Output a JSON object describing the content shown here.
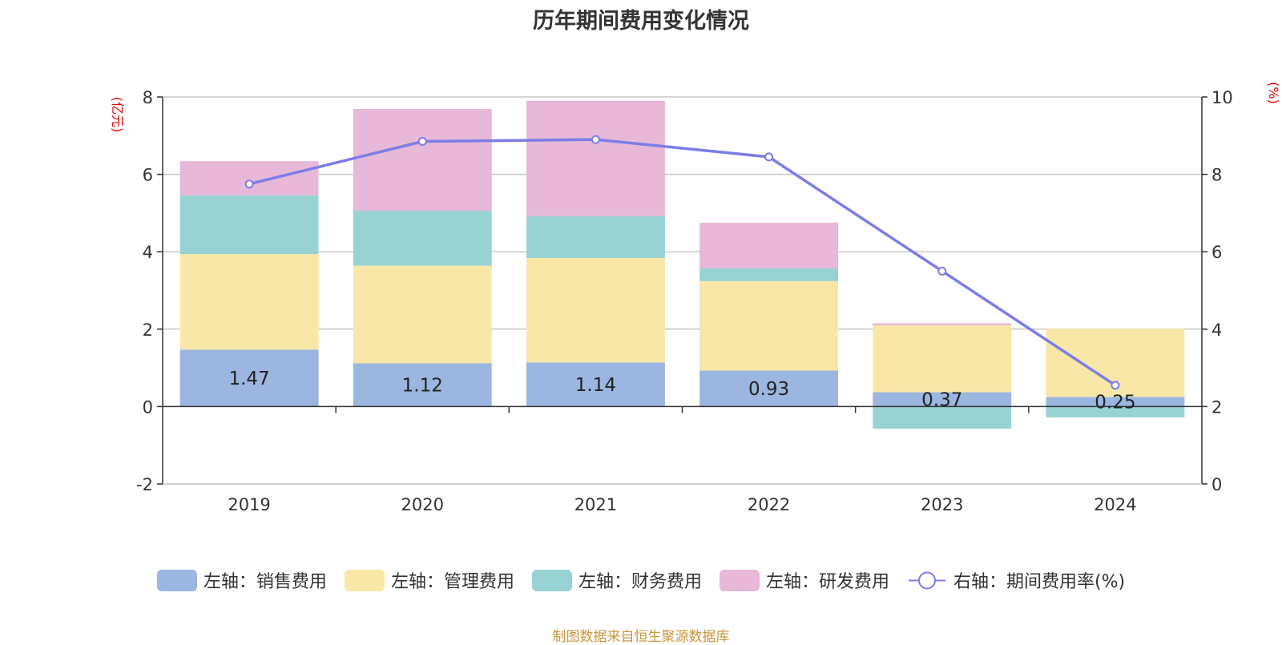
{
  "chart_data": {
    "type": "bar",
    "title": "历年期间费用变化情况",
    "categories": [
      "2019",
      "2020",
      "2021",
      "2022",
      "2023",
      "2024"
    ],
    "stacked": true,
    "series": [
      {
        "name": "左轴：销售费用",
        "axis": "left",
        "color": "#9bb6e0",
        "values": [
          1.47,
          1.12,
          1.14,
          0.93,
          0.37,
          0.25
        ]
      },
      {
        "name": "左轴：管理费用",
        "axis": "left",
        "color": "#f8e7a7",
        "values": [
          2.47,
          2.52,
          2.7,
          2.31,
          1.73,
          1.76
        ]
      },
      {
        "name": "左轴：财务费用",
        "axis": "left",
        "color": "#98d3d4",
        "values": [
          1.52,
          1.42,
          1.08,
          0.33,
          -0.57,
          -0.28
        ]
      },
      {
        "name": "左轴：研发费用",
        "axis": "left",
        "color": "#e8b8d8",
        "values": [
          0.88,
          2.63,
          2.98,
          1.18,
          0.05,
          0.0
        ]
      }
    ],
    "line_series": {
      "name": "右轴：期间费用率(%)",
      "axis": "right",
      "color": "#7b7de8",
      "values": [
        7.75,
        8.85,
        8.9,
        8.45,
        5.5,
        2.55
      ]
    },
    "data_labels": [
      "1.47",
      "1.12",
      "1.14",
      "0.93",
      "0.37",
      "0.25"
    ],
    "left_axis": {
      "unit": "(亿元)",
      "min": -2,
      "max": 8,
      "ticks": [
        "-2",
        "0",
        "2",
        "4",
        "6",
        "8"
      ]
    },
    "right_axis": {
      "unit": "(%)",
      "min": 0,
      "max": 10,
      "ticks": [
        "0",
        "2",
        "4",
        "6",
        "8",
        "10"
      ]
    },
    "grid": true,
    "legend_position": "bottom"
  },
  "source": "制图数据来自恒生聚源数据库"
}
